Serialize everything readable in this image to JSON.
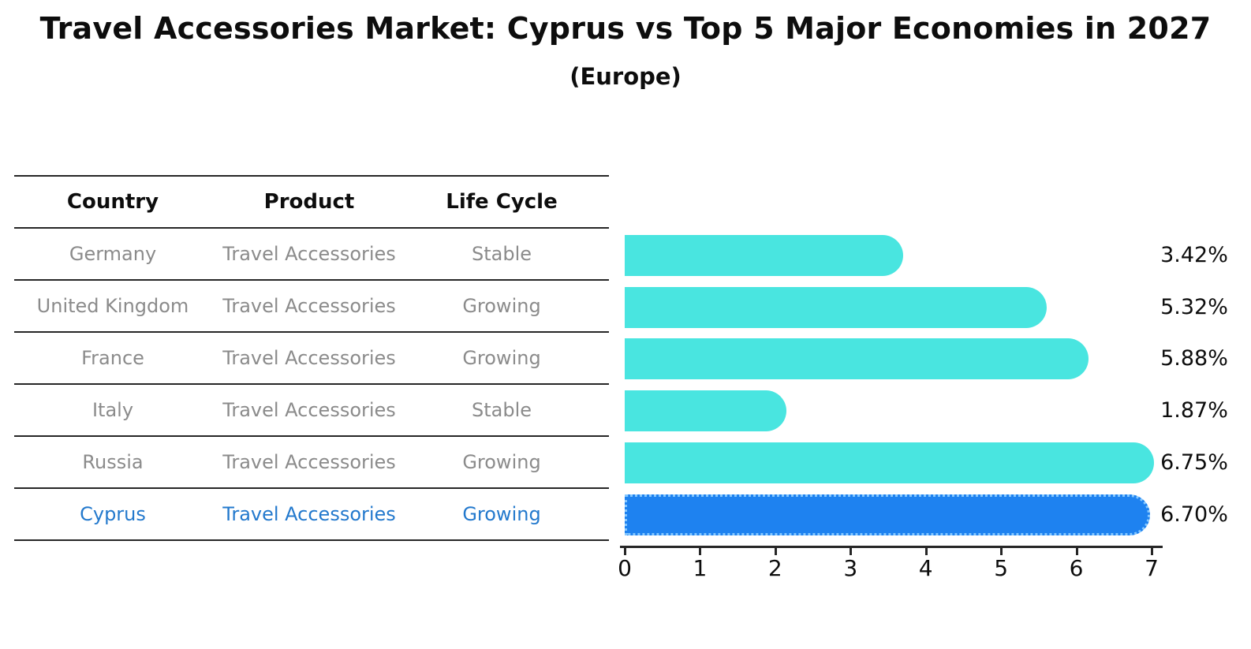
{
  "title": "Travel Accessories Market: Cyprus vs Top 5 Major Economies in 2027",
  "subtitle": "(Europe)",
  "table": {
    "headers": [
      "Country",
      "Product",
      "Life Cycle"
    ],
    "rows": [
      {
        "country": "Germany",
        "product": "Travel Accessories",
        "life_cycle": "Stable"
      },
      {
        "country": "United Kingdom",
        "product": "Travel Accessories",
        "life_cycle": "Growing"
      },
      {
        "country": "France",
        "product": "Travel Accessories",
        "life_cycle": "Growing"
      },
      {
        "country": "Italy",
        "product": "Travel Accessories",
        "life_cycle": "Stable"
      },
      {
        "country": "Russia",
        "product": "Travel Accessories",
        "life_cycle": "Growing"
      },
      {
        "country": "Cyprus",
        "product": "Travel Accessories",
        "life_cycle": "Growing"
      }
    ]
  },
  "chart_data": {
    "type": "bar",
    "orientation": "horizontal",
    "title": "Travel Accessories Market: Cyprus vs Top 5 Major Economies in 2027",
    "subtitle": "(Europe)",
    "categories": [
      "Germany",
      "United Kingdom",
      "France",
      "Italy",
      "Russia",
      "Cyprus"
    ],
    "values": [
      3.42,
      5.32,
      5.88,
      1.87,
      6.75,
      6.7
    ],
    "value_labels": [
      "3.42%",
      "5.32%",
      "5.88%",
      "1.87%",
      "6.75%",
      "6.70%"
    ],
    "xlim": [
      0,
      7
    ],
    "x_ticks": [
      "0",
      "1",
      "2",
      "3",
      "4",
      "5",
      "6",
      "7"
    ],
    "grid": false,
    "legend": "none",
    "highlight_category": "Cyprus",
    "bar_color": "#49E5E0",
    "highlight_bar_color": "#1E82F0",
    "highlight_text_color": "#2379CD",
    "axis_color": "#262626",
    "label_color": "#0d0d0d",
    "table_text_color": "#8b8b8b"
  }
}
